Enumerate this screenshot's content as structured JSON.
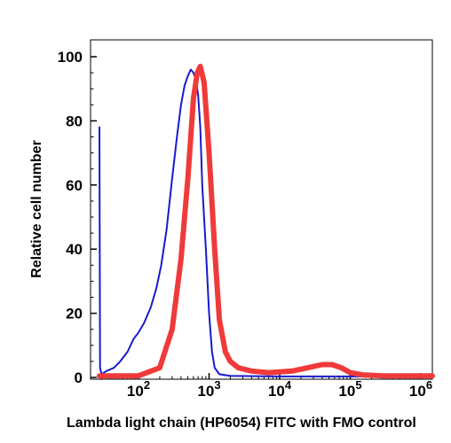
{
  "chart_data": {
    "type": "line",
    "title": "",
    "xlabel": "Lambda light chain (HP6054) FITC with FMO control",
    "ylabel": "Relative cell number",
    "x_scale": "log",
    "xlim": [
      25,
      1500000
    ],
    "ylim": [
      0,
      105
    ],
    "x_ticks": [
      {
        "value": 100,
        "base": "10",
        "exp": "2"
      },
      {
        "value": 1000,
        "base": "10",
        "exp": "3"
      },
      {
        "value": 10000,
        "base": "10",
        "exp": "4"
      },
      {
        "value": 100000,
        "base": "10",
        "exp": "5"
      },
      {
        "value": 1000000,
        "base": "10",
        "exp": "6"
      }
    ],
    "y_ticks": [
      0,
      20,
      40,
      60,
      80,
      100
    ],
    "grid": false,
    "legend": "none",
    "series": [
      {
        "color": "#1a1acc",
        "points": [
          [
            28,
            78
          ],
          [
            28.5,
            3
          ],
          [
            30,
            1
          ],
          [
            35,
            2
          ],
          [
            45,
            3
          ],
          [
            55,
            5
          ],
          [
            70,
            8
          ],
          [
            85,
            12
          ],
          [
            100,
            14
          ],
          [
            120,
            17
          ],
          [
            150,
            22
          ],
          [
            180,
            28
          ],
          [
            210,
            35
          ],
          [
            250,
            46
          ],
          [
            300,
            62
          ],
          [
            350,
            75
          ],
          [
            400,
            85
          ],
          [
            450,
            91
          ],
          [
            500,
            94
          ],
          [
            550,
            96
          ],
          [
            600,
            95
          ],
          [
            650,
            93
          ],
          [
            700,
            88
          ],
          [
            750,
            78
          ],
          [
            800,
            60
          ],
          [
            900,
            40
          ],
          [
            1000,
            20
          ],
          [
            1100,
            8
          ],
          [
            1200,
            3
          ],
          [
            1400,
            1
          ],
          [
            2000,
            0.5
          ],
          [
            10000,
            0.3
          ],
          [
            100000,
            0.3
          ],
          [
            1500000,
            0.3
          ]
        ]
      },
      {
        "color": "#f03a3a",
        "points": [
          [
            28,
            0.5
          ],
          [
            100,
            0.5
          ],
          [
            200,
            3
          ],
          [
            300,
            15
          ],
          [
            400,
            37
          ],
          [
            500,
            62
          ],
          [
            600,
            87
          ],
          [
            680,
            95
          ],
          [
            750,
            97
          ],
          [
            850,
            92
          ],
          [
            1000,
            70
          ],
          [
            1200,
            40
          ],
          [
            1400,
            18
          ],
          [
            1700,
            8
          ],
          [
            2000,
            5
          ],
          [
            2600,
            3
          ],
          [
            4000,
            2
          ],
          [
            7000,
            1.5
          ],
          [
            15000,
            2
          ],
          [
            25000,
            3
          ],
          [
            40000,
            4
          ],
          [
            55000,
            4
          ],
          [
            75000,
            3
          ],
          [
            100000,
            1.5
          ],
          [
            150000,
            0.8
          ],
          [
            300000,
            0.5
          ],
          [
            1500000,
            0.5
          ]
        ]
      }
    ]
  }
}
